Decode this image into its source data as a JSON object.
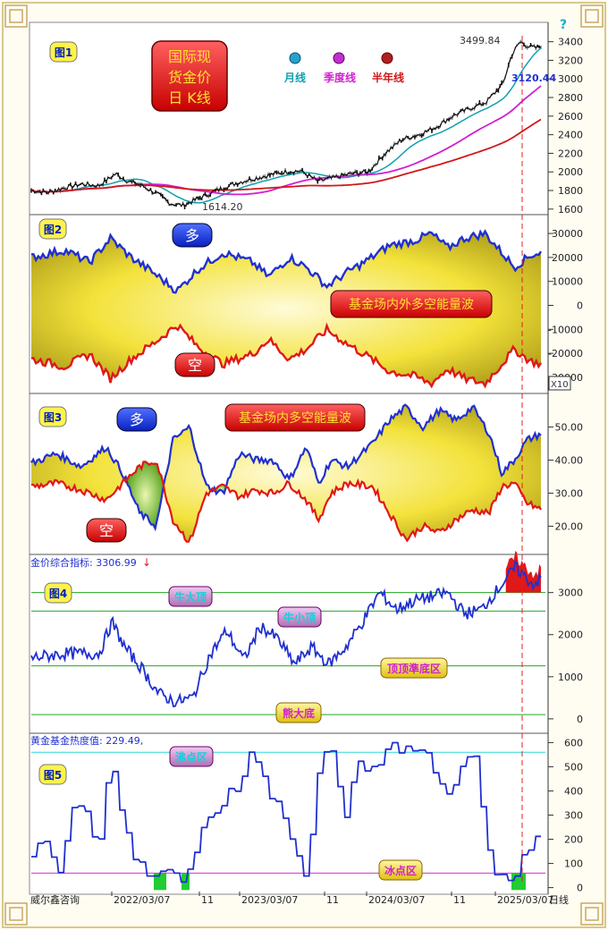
{
  "colors": {
    "bull": "#2030d0",
    "bear": "#e01818",
    "fill": "#f5e83a",
    "month": "#10a0b0",
    "quarter": "#d020d0",
    "half": "#d01818",
    "ref": "#22aa22",
    "boil": "#2ad8d8",
    "freeze": "#d030d0",
    "sell": "#e01818",
    "buy": "#22cc33"
  },
  "header": {
    "fig1": "图1",
    "fig2": "图2",
    "fig3": "图3",
    "fig4": "图4",
    "fig5": "图5",
    "help": "?",
    "title_line1": "国际现",
    "title_line2": "货金价",
    "title_line3": "日 K线",
    "legend_month": "月线",
    "legend_quarter": "季度线",
    "legend_half": "半年线"
  },
  "labels": {
    "peak": "3499.84",
    "low": "1614.20",
    "last": "3120.44",
    "bull": "多",
    "bear": "空",
    "panel2_tag": "基金场内外多空能量波",
    "panel3_tag": "基金场内多空能量波",
    "p4_title": "金价综合指标: 3306.99",
    "p4_arrow": "↓",
    "p4_big_top": "牛大顶",
    "p4_small_top": "牛小顶",
    "p4_mid": "顶顶準底区",
    "p4_bottom": "熊大底",
    "p5_title": "黄金基金热度值: 229.49,",
    "p5_boil": "沸点区",
    "p5_freeze": "冰点区",
    "footer_left": "威尔鑫咨询",
    "footer_right": "日线",
    "x10": "X10"
  },
  "chart_data": [
    {
      "type": "line",
      "title": "国际现货金价 日K线",
      "series_names": [
        "月线",
        "季度线",
        "半年线"
      ],
      "yticks": [
        "1600",
        "1800",
        "2000",
        "2200",
        "2400",
        "2600",
        "2800",
        "3000",
        "3200",
        "3400"
      ],
      "ylim": [
        1560,
        3560
      ],
      "keypoints": [
        [
          0,
          1800
        ],
        [
          20,
          1780
        ],
        [
          40,
          1830
        ],
        [
          60,
          1870
        ],
        [
          80,
          1850
        ],
        [
          100,
          1980
        ],
        [
          115,
          1900
        ],
        [
          130,
          1860
        ],
        [
          150,
          1760
        ],
        [
          165,
          1660
        ],
        [
          180,
          1640
        ],
        [
          200,
          1720
        ],
        [
          220,
          1800
        ],
        [
          240,
          1870
        ],
        [
          260,
          1920
        ],
        [
          280,
          1960
        ],
        [
          300,
          2000
        ],
        [
          320,
          2010
        ],
        [
          340,
          1900
        ],
        [
          360,
          1940
        ],
        [
          380,
          1980
        ],
        [
          400,
          2000
        ],
        [
          420,
          2200
        ],
        [
          440,
          2350
        ],
        [
          460,
          2400
        ],
        [
          480,
          2480
        ],
        [
          500,
          2600
        ],
        [
          520,
          2680
        ],
        [
          540,
          2750
        ],
        [
          560,
          2950
        ],
        [
          570,
          3250
        ],
        [
          580,
          3400
        ],
        [
          590,
          3350
        ],
        [
          600,
          3330
        ],
        [
          605,
          3360
        ]
      ],
      "peak": 3499.84,
      "low": 1614.2,
      "last": 3120.44
    },
    {
      "type": "area",
      "title": "基金场内外多空能量波",
      "yticks": [
        "30000",
        "20000",
        "10000",
        "0",
        "-10000",
        "-20000",
        "-30000"
      ],
      "ylim": [
        -36000,
        36000
      ]
    },
    {
      "type": "area",
      "title": "基金场内多空能量波",
      "yticks": [
        "50.00",
        "40.00",
        "30.00",
        "20.00"
      ],
      "ylim": [
        12,
        58
      ]
    },
    {
      "type": "line",
      "title": "金价综合指标: 3306.99",
      "yticks": [
        "3000",
        "2000",
        "1000",
        "0"
      ],
      "ylim": [
        -300,
        3800
      ],
      "reference_lines": [
        3000,
        2560,
        1260,
        100
      ],
      "keypoints": [
        [
          0,
          1450
        ],
        [
          40,
          1550
        ],
        [
          80,
          1550
        ],
        [
          95,
          2300
        ],
        [
          110,
          1700
        ],
        [
          130,
          1200
        ],
        [
          150,
          600
        ],
        [
          170,
          400
        ],
        [
          190,
          500
        ],
        [
          210,
          1500
        ],
        [
          230,
          2100
        ],
        [
          250,
          1400
        ],
        [
          270,
          2200
        ],
        [
          290,
          1900
        ],
        [
          310,
          1300
        ],
        [
          330,
          1700
        ],
        [
          350,
          1300
        ],
        [
          370,
          1700
        ],
        [
          390,
          2300
        ],
        [
          410,
          3000
        ],
        [
          430,
          2600
        ],
        [
          450,
          2800
        ],
        [
          470,
          2900
        ],
        [
          490,
          3000
        ],
        [
          510,
          2500
        ],
        [
          530,
          2600
        ],
        [
          550,
          3100
        ],
        [
          570,
          3600
        ],
        [
          590,
          3200
        ],
        [
          600,
          3306.99
        ]
      ]
    },
    {
      "type": "line",
      "title": "黄金基金热度值: 229.49,",
      "yticks": [
        "600",
        "500",
        "400",
        "300",
        "200",
        "100",
        "0"
      ],
      "ylim": [
        -20,
        620
      ],
      "reference_lines": [
        560,
        60
      ],
      "keypoints": [
        [
          0,
          130
        ],
        [
          15,
          200
        ],
        [
          30,
          60
        ],
        [
          45,
          300
        ],
        [
          60,
          350
        ],
        [
          75,
          120
        ],
        [
          90,
          520
        ],
        [
          105,
          300
        ],
        [
          120,
          100
        ],
        [
          135,
          40
        ],
        [
          150,
          70
        ],
        [
          165,
          30
        ],
        [
          180,
          60
        ],
        [
          195,
          260
        ],
        [
          210,
          300
        ],
        [
          225,
          380
        ],
        [
          240,
          420
        ],
        [
          255,
          580
        ],
        [
          270,
          390
        ],
        [
          285,
          360
        ],
        [
          300,
          190
        ],
        [
          315,
          60
        ],
        [
          330,
          520
        ],
        [
          345,
          560
        ],
        [
          360,
          310
        ],
        [
          375,
          500
        ],
        [
          390,
          490
        ],
        [
          405,
          560
        ],
        [
          420,
          580
        ],
        [
          435,
          570
        ],
        [
          450,
          570
        ],
        [
          465,
          450
        ],
        [
          480,
          380
        ],
        [
          495,
          510
        ],
        [
          510,
          520
        ],
        [
          525,
          120
        ],
        [
          540,
          30
        ],
        [
          555,
          40
        ],
        [
          570,
          170
        ],
        [
          585,
          229.49
        ]
      ]
    }
  ],
  "xaxis": {
    "labels": [
      "2022/03/07",
      "11",
      "2023/03/07",
      "11",
      "2024/03/07",
      "11",
      "2025/03/07"
    ]
  }
}
